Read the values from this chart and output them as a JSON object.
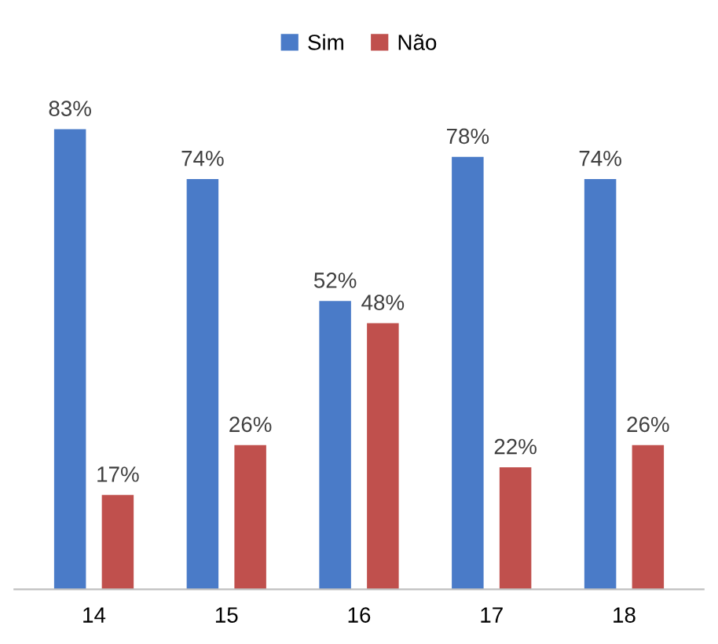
{
  "chart_data": {
    "type": "bar",
    "categories": [
      "14",
      "15",
      "16",
      "17",
      "18"
    ],
    "series": [
      {
        "name": "Sim",
        "color": "#4a7bc8",
        "values": [
          83,
          74,
          52,
          78,
          74
        ],
        "value_labels": [
          "83%",
          "74%",
          "52%",
          "78%",
          "74%"
        ]
      },
      {
        "name": "Não",
        "color": "#c0504d",
        "values": [
          17,
          26,
          48,
          22,
          26
        ],
        "value_labels": [
          "17%",
          "26%",
          "48%",
          "22%",
          "26%"
        ]
      }
    ],
    "legend": "top",
    "grid": false
  }
}
